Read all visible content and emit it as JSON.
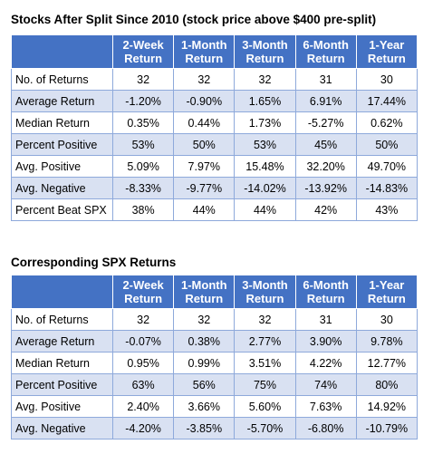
{
  "tables": [
    {
      "title": "Stocks After Split Since 2010 (stock price above $400 pre-split)",
      "headers": [
        [
          "2-Week",
          "Return"
        ],
        [
          "1-Month",
          "Return"
        ],
        [
          "3-Month",
          "Return"
        ],
        [
          "6-Month",
          "Return"
        ],
        [
          "1-Year",
          "Return"
        ]
      ],
      "rows": [
        {
          "label": "No. of Returns",
          "values": [
            "32",
            "32",
            "32",
            "31",
            "30"
          ]
        },
        {
          "label": "Average Return",
          "values": [
            "-1.20%",
            "-0.90%",
            "1.65%",
            "6.91%",
            "17.44%"
          ]
        },
        {
          "label": "Median Return",
          "values": [
            "0.35%",
            "0.44%",
            "1.73%",
            "-5.27%",
            "0.62%"
          ]
        },
        {
          "label": "Percent Positive",
          "values": [
            "53%",
            "50%",
            "53%",
            "45%",
            "50%"
          ]
        },
        {
          "label": "Avg. Positive",
          "values": [
            "5.09%",
            "7.97%",
            "15.48%",
            "32.20%",
            "49.70%"
          ]
        },
        {
          "label": "Avg. Negative",
          "values": [
            "-8.33%",
            "-9.77%",
            "-14.02%",
            "-13.92%",
            "-14.83%"
          ]
        },
        {
          "label": "Percent Beat SPX",
          "values": [
            "38%",
            "44%",
            "44%",
            "42%",
            "43%"
          ]
        }
      ]
    },
    {
      "title": "Corresponding SPX Returns",
      "headers": [
        [
          "2-Week",
          "Return"
        ],
        [
          "1-Month",
          "Return"
        ],
        [
          "3-Month",
          "Return"
        ],
        [
          "6-Month",
          "Return"
        ],
        [
          "1-Year",
          "Return"
        ]
      ],
      "rows": [
        {
          "label": "No. of Returns",
          "values": [
            "32",
            "32",
            "32",
            "31",
            "30"
          ]
        },
        {
          "label": "Average Return",
          "values": [
            "-0.07%",
            "0.38%",
            "2.77%",
            "3.90%",
            "9.78%"
          ]
        },
        {
          "label": "Median Return",
          "values": [
            "0.95%",
            "0.99%",
            "3.51%",
            "4.22%",
            "12.77%"
          ]
        },
        {
          "label": "Percent Positive",
          "values": [
            "63%",
            "56%",
            "75%",
            "74%",
            "80%"
          ]
        },
        {
          "label": "Avg. Positive",
          "values": [
            "2.40%",
            "3.66%",
            "5.60%",
            "7.63%",
            "14.92%"
          ]
        },
        {
          "label": "Avg. Negative",
          "values": [
            "-4.20%",
            "-3.85%",
            "-5.70%",
            "-6.80%",
            "-10.79%"
          ]
        }
      ]
    }
  ],
  "colors": {
    "header_fill": "#4472c4",
    "band_fill": "#d9e1f2",
    "border": "#8ea9db"
  }
}
